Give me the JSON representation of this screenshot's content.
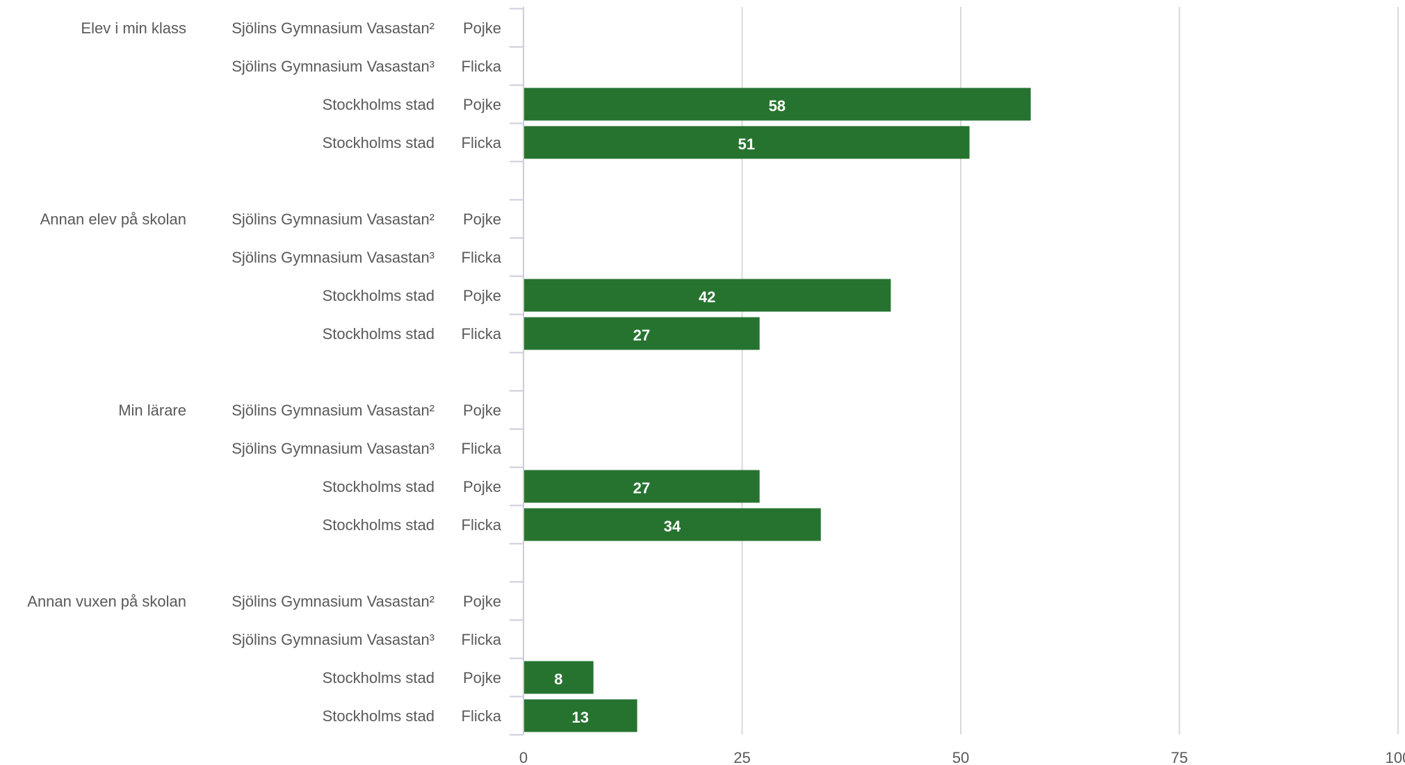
{
  "colors": {
    "bar": "#267330",
    "grid": "#d9d9d9",
    "axis": "#ccccdd",
    "label": "#595959",
    "value": "#ffffff"
  },
  "chart_data": {
    "type": "bar",
    "orientation": "horizontal",
    "xlim": [
      0,
      100
    ],
    "ticks": [
      "0",
      "25",
      "50",
      "75",
      "100"
    ],
    "tick_values": [
      0,
      25,
      50,
      75,
      100
    ],
    "grid": true,
    "groups": [
      {
        "label": "Elev i min klass",
        "rows": [
          {
            "school": "Sjölins Gymnasium Vasastan²",
            "gender": "Pojke",
            "value": null
          },
          {
            "school": "Sjölins Gymnasium Vasastan³",
            "gender": "Flicka",
            "value": null
          },
          {
            "school": "Stockholms stad",
            "gender": "Pojke",
            "value": 58
          },
          {
            "school": "Stockholms stad",
            "gender": "Flicka",
            "value": 51
          }
        ]
      },
      {
        "label": "Annan elev på skolan",
        "rows": [
          {
            "school": "Sjölins Gymnasium Vasastan²",
            "gender": "Pojke",
            "value": null
          },
          {
            "school": "Sjölins Gymnasium Vasastan³",
            "gender": "Flicka",
            "value": null
          },
          {
            "school": "Stockholms stad",
            "gender": "Pojke",
            "value": 42
          },
          {
            "school": "Stockholms stad",
            "gender": "Flicka",
            "value": 27
          }
        ]
      },
      {
        "label": "Min lärare",
        "rows": [
          {
            "school": "Sjölins Gymnasium Vasastan²",
            "gender": "Pojke",
            "value": null
          },
          {
            "school": "Sjölins Gymnasium Vasastan³",
            "gender": "Flicka",
            "value": null
          },
          {
            "school": "Stockholms stad",
            "gender": "Pojke",
            "value": 27
          },
          {
            "school": "Stockholms stad",
            "gender": "Flicka",
            "value": 34
          }
        ]
      },
      {
        "label": "Annan vuxen på skolan",
        "rows": [
          {
            "school": "Sjölins Gymnasium Vasastan²",
            "gender": "Pojke",
            "value": null
          },
          {
            "school": "Sjölins Gymnasium Vasastan³",
            "gender": "Flicka",
            "value": null
          },
          {
            "school": "Stockholms stad",
            "gender": "Pojke",
            "value": 8
          },
          {
            "school": "Stockholms stad",
            "gender": "Flicka",
            "value": 13
          }
        ]
      }
    ]
  }
}
